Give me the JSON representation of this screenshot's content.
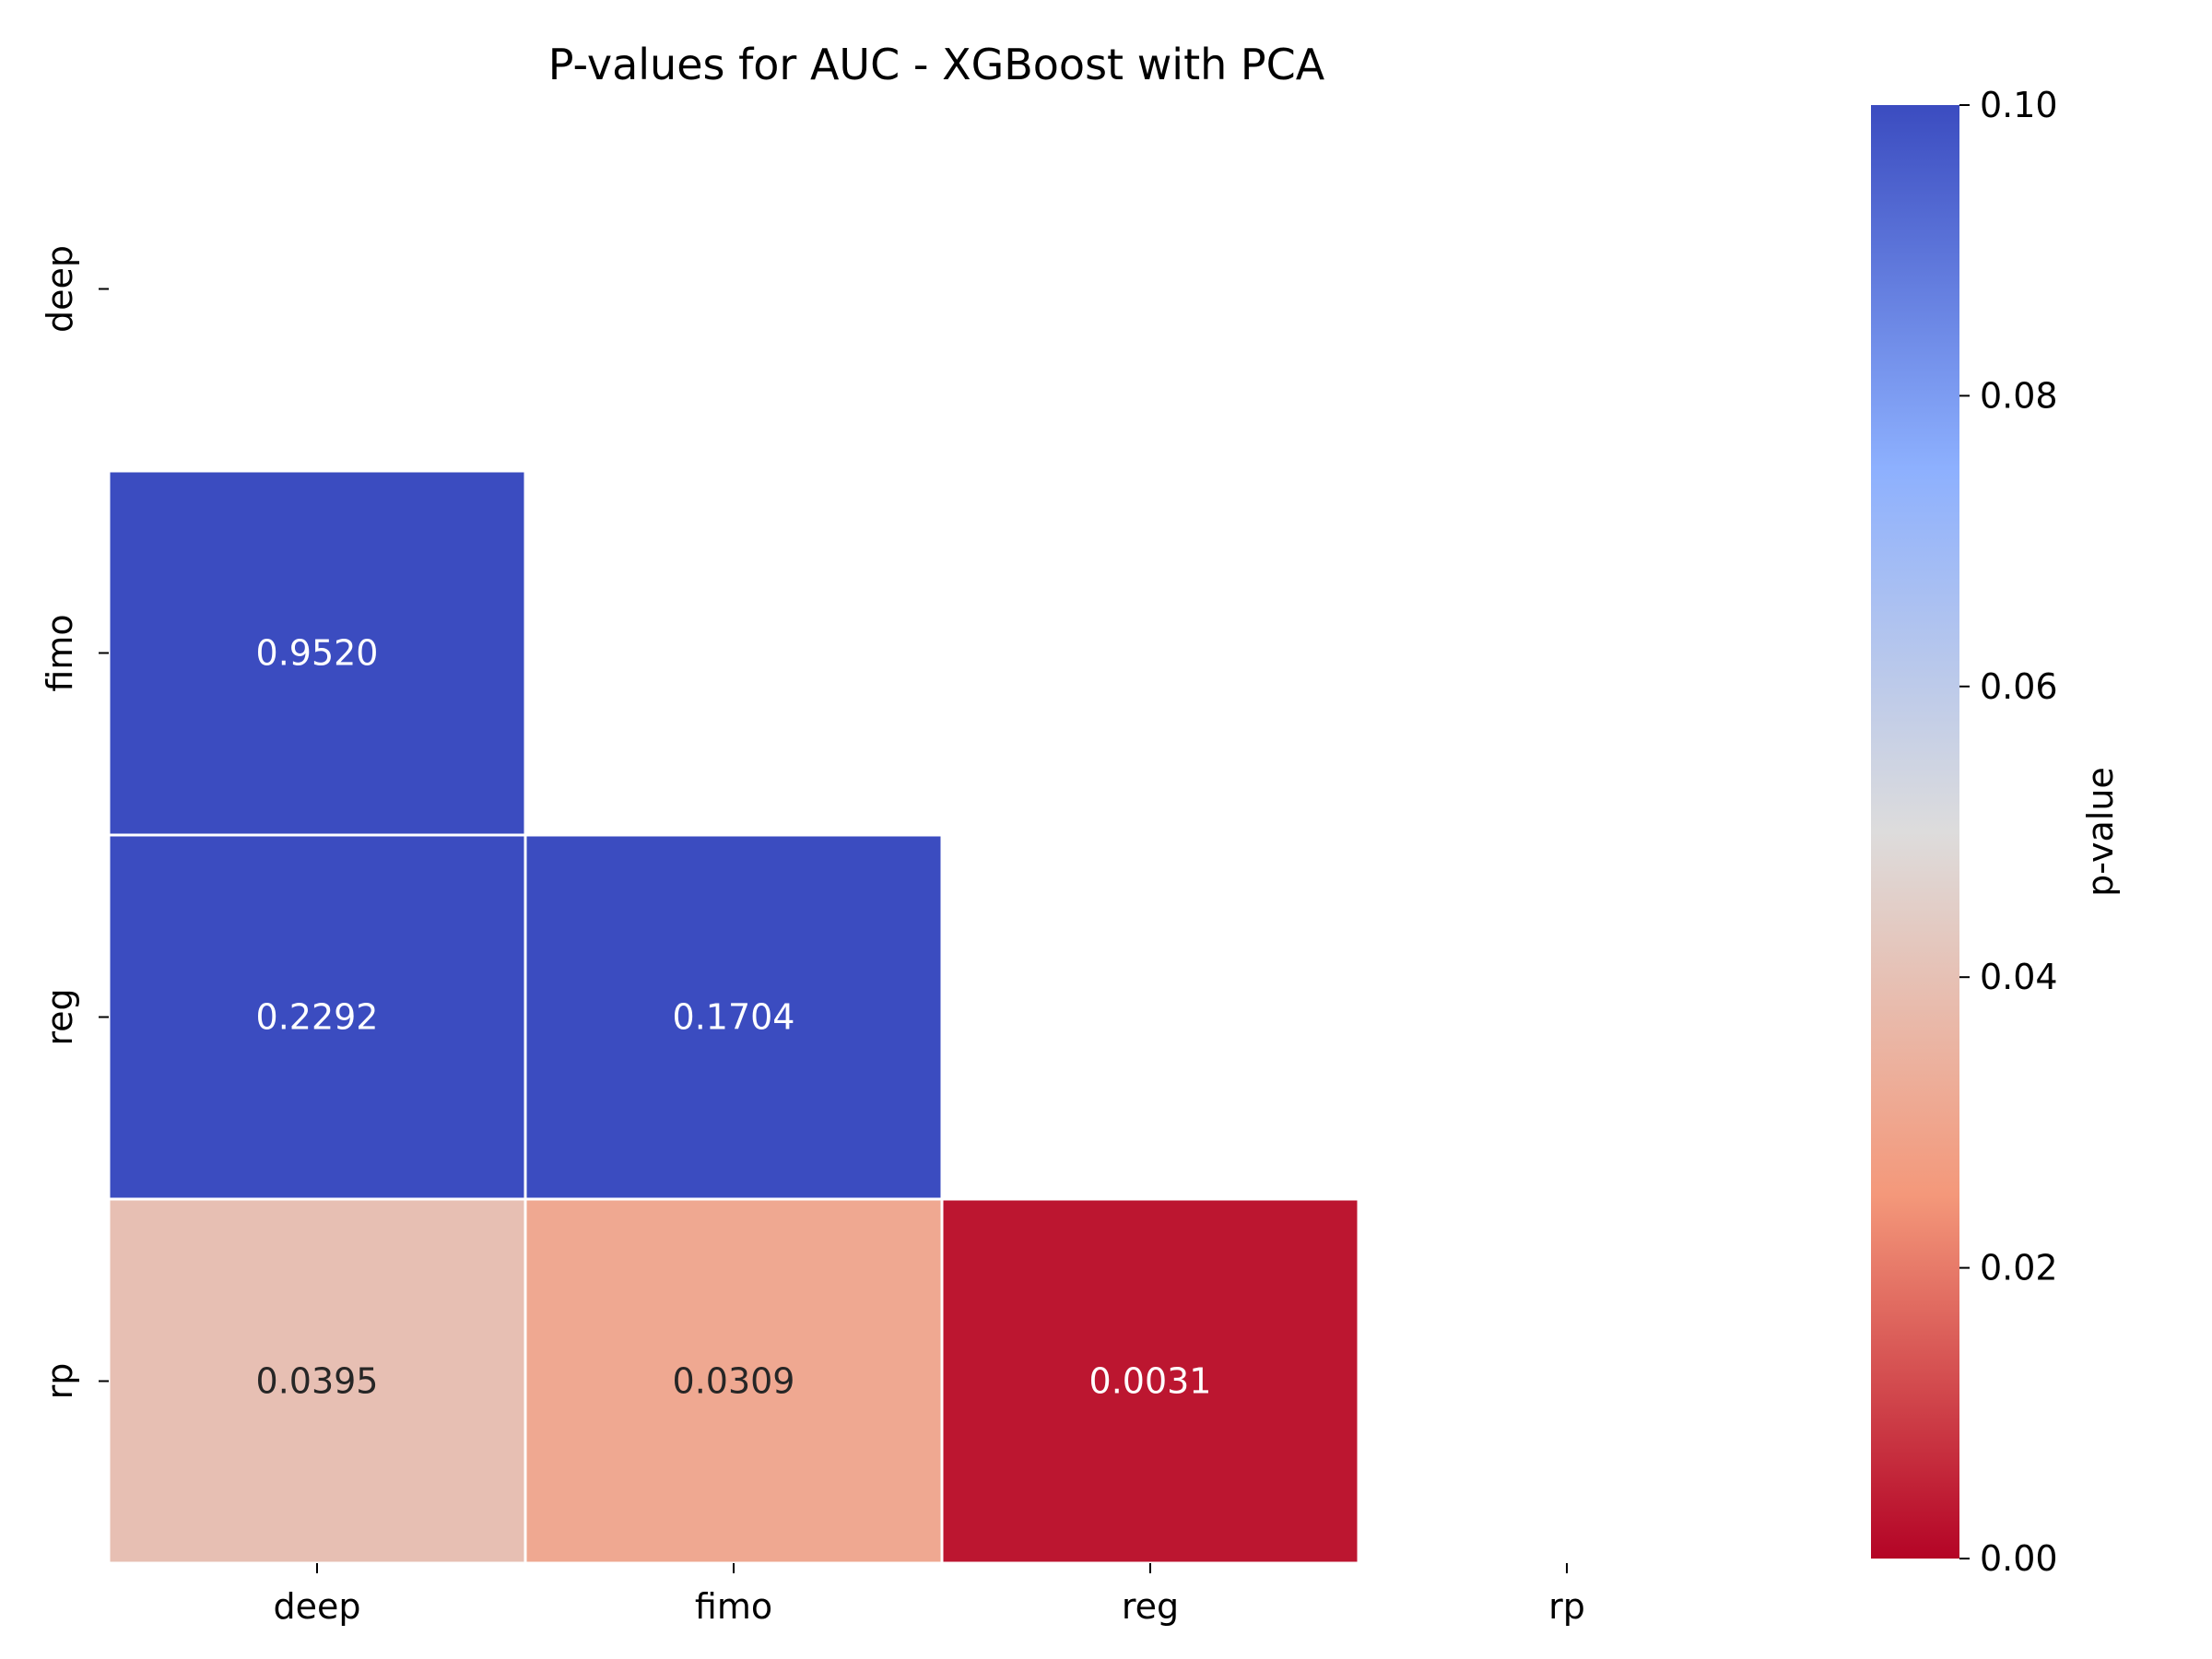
{
  "chart_data": {
    "type": "heatmap",
    "title": "P-values for AUC - XGBoost with PCA",
    "xlabel": "",
    "ylabel": "",
    "x_categories": [
      "deep",
      "fimo",
      "reg",
      "rp"
    ],
    "y_categories": [
      "deep",
      "fimo",
      "reg",
      "rp"
    ],
    "mask": "upper triangle including diagonal",
    "cells": [
      {
        "row": "fimo",
        "col": "deep",
        "value": 0.952,
        "label": "0.9520"
      },
      {
        "row": "reg",
        "col": "deep",
        "value": 0.2292,
        "label": "0.2292"
      },
      {
        "row": "reg",
        "col": "fimo",
        "value": 0.1704,
        "label": "0.1704"
      },
      {
        "row": "rp",
        "col": "deep",
        "value": 0.0395,
        "label": "0.0395"
      },
      {
        "row": "rp",
        "col": "fimo",
        "value": 0.0309,
        "label": "0.0309"
      },
      {
        "row": "rp",
        "col": "reg",
        "value": 0.0031,
        "label": "0.0031"
      }
    ],
    "colormap": "coolwarm_r",
    "colormap_stops": [
      "#b40426",
      "#f4987a",
      "#dddcdc",
      "#8db0fe",
      "#3b4cc0"
    ],
    "vmin": 0.0,
    "vmax": 0.1,
    "colorbar": {
      "label": "p-value",
      "ticks": [
        "0.00",
        "0.02",
        "0.04",
        "0.06",
        "0.08",
        "0.10"
      ]
    },
    "grid": false,
    "cell_border_color": "#ffffff"
  }
}
